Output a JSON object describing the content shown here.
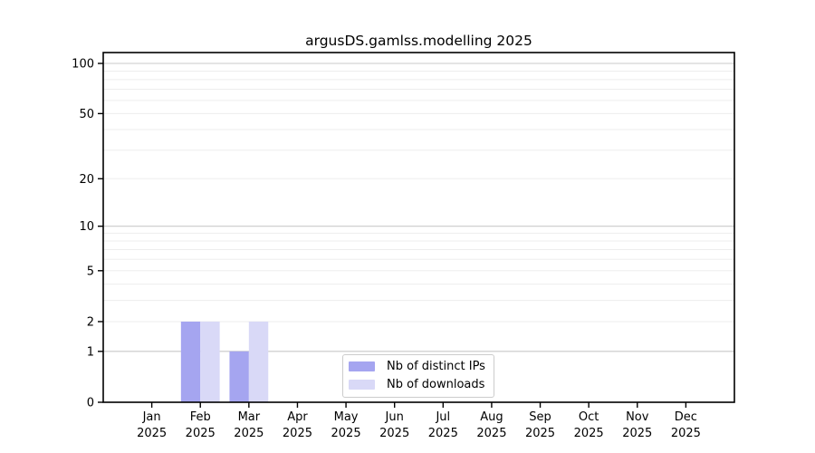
{
  "chart_data": {
    "type": "bar",
    "title": "argusDS.gamlss.modelling 2025",
    "categories": [
      "Jan",
      "Feb",
      "Mar",
      "Apr",
      "May",
      "Jun",
      "Jul",
      "Aug",
      "Sep",
      "Oct",
      "Nov",
      "Dec"
    ],
    "year_label": "2025",
    "series": [
      {
        "name": "Nb of distinct IPs",
        "color": "#a5a5f0",
        "values": [
          0,
          2,
          1,
          0,
          0,
          0,
          0,
          0,
          0,
          0,
          0,
          0
        ]
      },
      {
        "name": "Nb of downloads",
        "color": "#d9d9f7",
        "values": [
          0,
          2,
          2,
          0,
          0,
          0,
          0,
          0,
          0,
          0,
          0,
          0
        ]
      }
    ],
    "yscale": "log1p",
    "ylim": [
      0,
      116
    ],
    "ytick_values": [
      0,
      1,
      2,
      5,
      10,
      20,
      50,
      100
    ],
    "ytick_labels": [
      "0",
      "1",
      "2",
      "5",
      "10",
      "20",
      "50",
      "100"
    ],
    "grid_values": [
      1,
      2,
      3,
      4,
      5,
      6,
      7,
      8,
      9,
      10,
      20,
      30,
      40,
      50,
      60,
      70,
      80,
      90,
      100
    ],
    "major_grid_values": [
      1,
      10,
      100
    ],
    "grid_on": true,
    "legend_position": "lower center",
    "colors": {
      "major_grid": "#c9c9c9",
      "minor_grid": "#ededed",
      "axis": "#000000",
      "background": "#ffffff"
    }
  }
}
